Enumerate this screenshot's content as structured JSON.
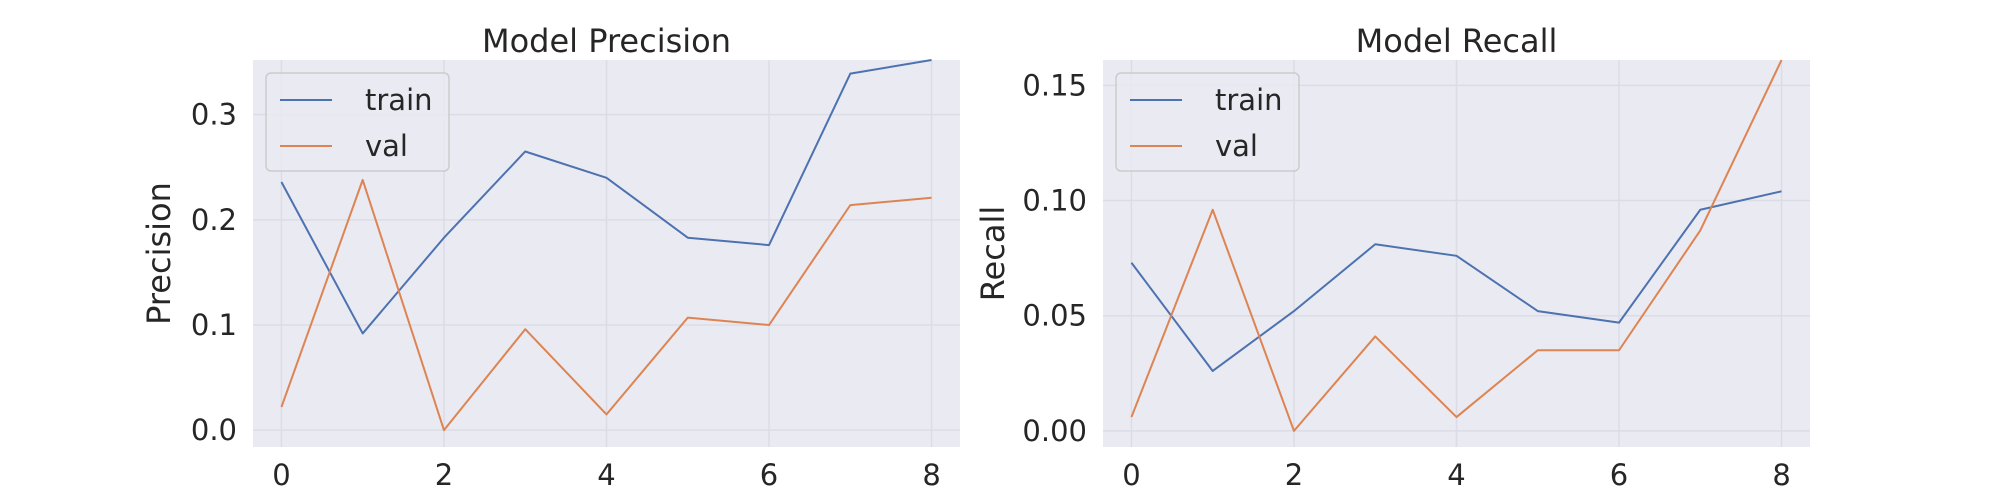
{
  "chart_data": [
    {
      "type": "line",
      "title": "Model Precision",
      "xlabel": "",
      "ylabel": "Precision",
      "x": [
        0,
        1,
        2,
        3,
        4,
        5,
        6,
        7,
        8
      ],
      "xticks": [
        "0",
        "2",
        "4",
        "6",
        "8"
      ],
      "yticks": [
        "0.0",
        "0.1",
        "0.2",
        "0.3"
      ],
      "xlim": [
        -0.35,
        8.35
      ],
      "ylim": [
        -0.016,
        0.352
      ],
      "grid": true,
      "legend_position": "top-left",
      "series": [
        {
          "name": "train",
          "color": "#4c72b0",
          "values": [
            0.236,
            0.092,
            0.183,
            0.265,
            0.24,
            0.183,
            0.176,
            0.339,
            0.352
          ]
        },
        {
          "name": "val",
          "color": "#dd8452",
          "values": [
            0.022,
            0.238,
            0.0,
            0.096,
            0.015,
            0.107,
            0.1,
            0.214,
            0.221
          ]
        }
      ]
    },
    {
      "type": "line",
      "title": "Model Recall",
      "xlabel": "",
      "ylabel": "Recall",
      "x": [
        0,
        1,
        2,
        3,
        4,
        5,
        6,
        7,
        8
      ],
      "xticks": [
        "0",
        "2",
        "4",
        "6",
        "8"
      ],
      "yticks": [
        "0.00",
        "0.05",
        "0.10",
        "0.15"
      ],
      "xlim": [
        -0.35,
        8.35
      ],
      "ylim": [
        -0.007,
        0.161
      ],
      "grid": true,
      "legend_position": "top-left",
      "series": [
        {
          "name": "train",
          "color": "#4c72b0",
          "values": [
            0.073,
            0.026,
            0.052,
            0.081,
            0.076,
            0.052,
            0.047,
            0.096,
            0.104
          ]
        },
        {
          "name": "val",
          "color": "#dd8452",
          "values": [
            0.006,
            0.096,
            0.0,
            0.041,
            0.006,
            0.035,
            0.035,
            0.087,
            0.161
          ]
        }
      ]
    }
  ]
}
